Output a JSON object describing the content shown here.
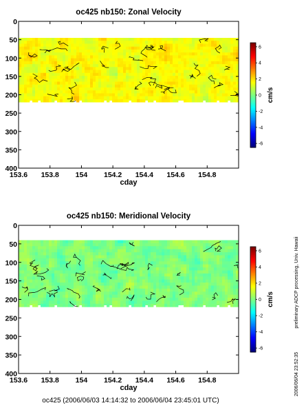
{
  "chart_data": [
    {
      "type": "heatmap",
      "title": "oc425 nb150: Zonal Velocity",
      "xlabel": "cday",
      "ylabel": "",
      "x_ticks": [
        "153.6",
        "153.8",
        "154",
        "154.2",
        "154.4",
        "154.6",
        "154.8"
      ],
      "y_ticks": [
        "0",
        "50",
        "100",
        "150",
        "200",
        "250",
        "300",
        "350",
        "400"
      ],
      "xlim": [
        153.6,
        155.0
      ],
      "ylim": [
        400,
        0
      ],
      "y_reversed": true,
      "data_depth_range": [
        45,
        220
      ],
      "colorbar": {
        "label": "cm/s",
        "min": -6.5,
        "max": 6.5,
        "ticks": [
          "6",
          "4",
          "2",
          "0",
          "-2",
          "-4",
          "-6"
        ]
      },
      "grid": false,
      "colors": {
        "dominant": "#7fe07a",
        "secondary": "#3fe0c0"
      }
    },
    {
      "type": "heatmap",
      "title": "oc425 nb150: Meridional Velocity",
      "xlabel": "cday",
      "ylabel": "",
      "x_ticks": [
        "153.6",
        "153.8",
        "154",
        "154.2",
        "154.4",
        "154.6",
        "154.8"
      ],
      "y_ticks": [
        "0",
        "50",
        "100",
        "150",
        "200",
        "250",
        "300",
        "350",
        "400"
      ],
      "xlim": [
        153.6,
        155.0
      ],
      "ylim": [
        400,
        0
      ],
      "y_reversed": true,
      "data_depth_range": [
        40,
        220
      ],
      "colorbar": {
        "label": "cm/s",
        "min": -6.5,
        "max": 6.5,
        "ticks": [
          "6",
          "4",
          "2",
          "0",
          "-2",
          "-4",
          "-6"
        ]
      },
      "grid": false,
      "colors": {
        "dominant": "#3fe0c0",
        "secondary": "#7fe07a"
      }
    }
  ],
  "footer": "oc425 (2006/06/03 14:14:32 to 2006/06/04 23:45:01 UTC)",
  "side_note": "preliminary ADCP processing,  Univ. Hawaii",
  "side_timestamp": "2006/06/04 23:52:35"
}
